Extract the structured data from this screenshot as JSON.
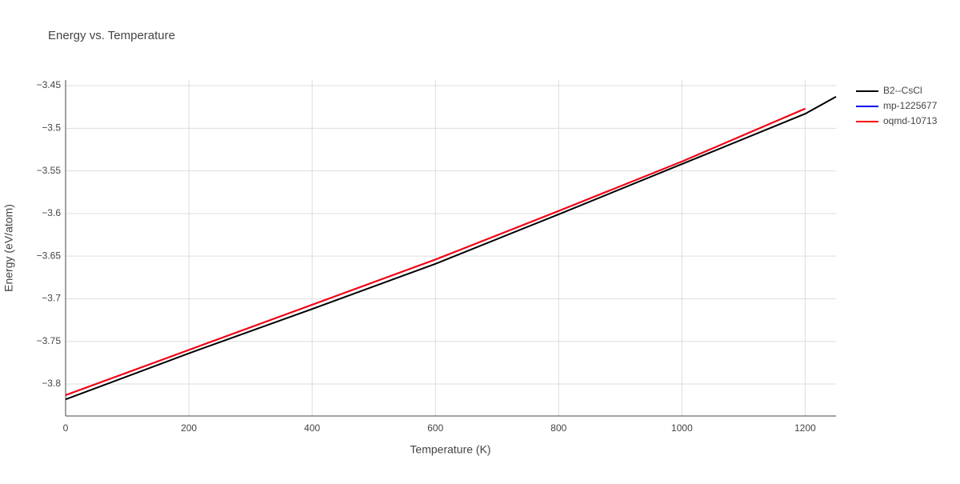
{
  "chart_data": {
    "type": "line",
    "title": "Energy vs. Temperature",
    "x_label": "Temperature (K)",
    "y_label": "Energy (eV/atom)",
    "xlim": [
      0,
      1250
    ],
    "xticks": [
      0,
      200,
      400,
      600,
      800,
      1000,
      1200
    ],
    "ylim": [
      -3.8375,
      -3.4434
    ],
    "yticks": [
      {
        "value": -3.8,
        "label": "−3.8"
      },
      {
        "value": -3.75,
        "label": "−3.75"
      },
      {
        "value": -3.7,
        "label": "−3.7"
      },
      {
        "value": -3.65,
        "label": "−3.65"
      },
      {
        "value": -3.6,
        "label": "−3.6"
      },
      {
        "value": -3.55,
        "label": "−3.55"
      },
      {
        "value": -3.5,
        "label": "−3.5"
      },
      {
        "value": -3.45,
        "label": "−3.45"
      }
    ],
    "grid": true,
    "series": [
      {
        "name": "B2--CsCl",
        "color": "#000000",
        "x": [
          0,
          200,
          400,
          600,
          800,
          1000,
          1200,
          1250
        ],
        "values": [
          -3.818,
          -3.764,
          -3.712,
          -3.659,
          -3.601,
          -3.542,
          -3.483,
          -3.463
        ]
      },
      {
        "name": "mp-1225677",
        "color": "#0000ff",
        "x": [
          0,
          200,
          400,
          600,
          800,
          1000,
          1200
        ],
        "values": [
          -3.813,
          -3.76,
          -3.707,
          -3.654,
          -3.597,
          -3.539,
          -3.477
        ]
      },
      {
        "name": "oqmd-10713",
        "color": "#ff0000",
        "x": [
          0,
          200,
          400,
          600,
          800,
          1000,
          1200
        ],
        "values": [
          -3.813,
          -3.76,
          -3.707,
          -3.654,
          -3.597,
          -3.539,
          -3.477
        ]
      }
    ]
  }
}
